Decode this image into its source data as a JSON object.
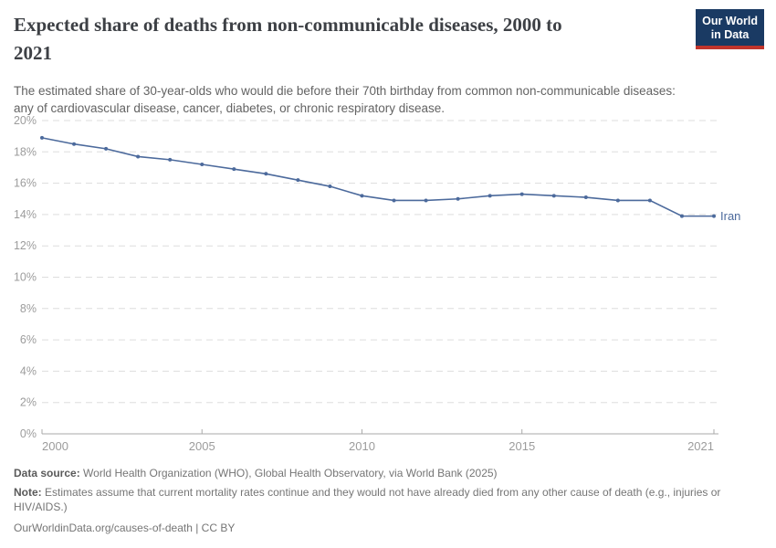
{
  "header": {
    "title_line1": "Expected share of deaths from non-communicable diseases, 2000 to",
    "title_line2": "2021",
    "subtitle_line1": "The estimated share of 30-year-olds who would die before their 70th birthday from common non-communicable diseases:",
    "subtitle_line2": "any of cardiovascular disease, cancer, diabetes, or chronic respiratory disease.",
    "logo_line1": "Our World",
    "logo_line2": "in Data",
    "logo_bg_color": "#1A3A63",
    "logo_accent_color": "#C1342C"
  },
  "chart_data": {
    "type": "line",
    "title": "Expected share of deaths from non-communicable diseases, 2000 to 2021",
    "xlabel": "",
    "ylabel": "",
    "xlim": [
      2000,
      2021
    ],
    "ylim": [
      0,
      20
    ],
    "grid": "horizontal-dashed",
    "legend_position": "end-of-line",
    "x_ticks": [
      2000,
      2005,
      2010,
      2015,
      2021
    ],
    "y_ticks": [
      0,
      2,
      4,
      6,
      8,
      10,
      12,
      14,
      16,
      18,
      20
    ],
    "y_tick_suffix": "%",
    "series": [
      {
        "name": "Iran",
        "color": "#4C6A9C",
        "x": [
          2000,
          2001,
          2002,
          2003,
          2004,
          2005,
          2006,
          2007,
          2008,
          2009,
          2010,
          2011,
          2012,
          2013,
          2014,
          2015,
          2016,
          2017,
          2018,
          2019,
          2020,
          2021
        ],
        "values": [
          18.9,
          18.5,
          18.2,
          17.7,
          17.5,
          17.2,
          16.9,
          16.6,
          16.2,
          15.8,
          15.2,
          14.9,
          14.9,
          15.0,
          15.2,
          15.3,
          15.2,
          15.1,
          14.9,
          14.9,
          13.9,
          13.9
        ]
      }
    ]
  },
  "footer": {
    "source_label": "Data source:",
    "source_text": " World Health Organization (WHO), Global Health Observatory, via World Bank (2025)",
    "note_label": "Note:",
    "note_text": " Estimates assume that current mortality rates continue and they would not have already died from any other cause of death (e.g., injuries or HIV/AIDS.)",
    "citation": "OurWorldinData.org/causes-of-death | CC BY"
  }
}
